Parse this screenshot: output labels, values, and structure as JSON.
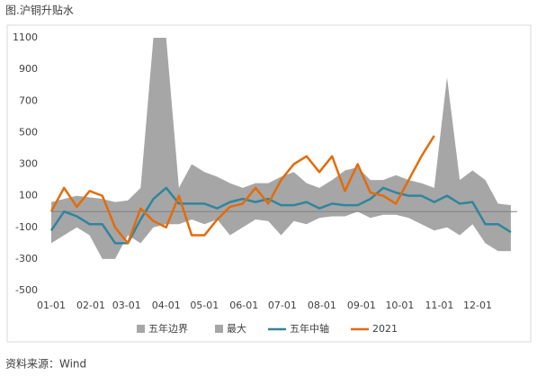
{
  "chart_data": {
    "type": "line",
    "title": "图.沪铜升贴水",
    "source": "资料来源：Wind",
    "x": [
      0,
      10,
      20,
      30,
      40,
      50,
      60,
      70,
      80,
      90,
      100,
      110,
      120,
      130,
      140,
      150,
      160,
      170,
      180,
      190,
      200,
      210,
      220,
      230,
      240,
      250,
      260,
      270,
      280,
      290,
      300,
      310,
      320,
      330,
      340,
      350,
      360
    ],
    "xlim": [
      0,
      365
    ],
    "xticks": [
      {
        "value": 0,
        "label": "01-01"
      },
      {
        "value": 31,
        "label": "02-01"
      },
      {
        "value": 59,
        "label": "03-01"
      },
      {
        "value": 90,
        "label": "04-01"
      },
      {
        "value": 120,
        "label": "05-01"
      },
      {
        "value": 151,
        "label": "06-01"
      },
      {
        "value": 181,
        "label": "07-01"
      },
      {
        "value": 212,
        "label": "08-01"
      },
      {
        "value": 243,
        "label": "09-01"
      },
      {
        "value": 273,
        "label": "10-01"
      },
      {
        "value": 304,
        "label": "11-01"
      },
      {
        "value": 334,
        "label": "12-01"
      }
    ],
    "ylim": [
      -500,
      1100
    ],
    "yticks": [
      -500,
      -300,
      -100,
      100,
      300,
      500,
      700,
      900,
      1100
    ],
    "series": [
      {
        "name": "五年边界",
        "kind": "area",
        "color": "#a6a6a6",
        "values": [
          -200,
          -150,
          -100,
          -150,
          -300,
          -300,
          -150,
          -200,
          -100,
          -80,
          -80,
          -50,
          -80,
          -50,
          -150,
          -100,
          -50,
          -60,
          -150,
          -60,
          -80,
          -40,
          -30,
          -30,
          0,
          -40,
          -20,
          -20,
          -40,
          -80,
          -120,
          -100,
          -150,
          -80,
          -200,
          -250,
          -250
        ]
      },
      {
        "name": "最大",
        "kind": "area",
        "color": "#a6a6a6",
        "values": [
          60,
          80,
          100,
          90,
          80,
          60,
          70,
          150,
          1100,
          1100,
          150,
          300,
          250,
          220,
          180,
          150,
          180,
          180,
          220,
          250,
          180,
          150,
          200,
          260,
          280,
          200,
          200,
          230,
          200,
          180,
          150,
          850,
          200,
          260,
          200,
          50,
          40
        ]
      },
      {
        "name": "五年中轴",
        "kind": "line",
        "color": "#31859c",
        "values": [
          -120,
          0,
          -30,
          -80,
          -80,
          -200,
          -200,
          -50,
          80,
          150,
          50,
          50,
          50,
          20,
          60,
          80,
          60,
          80,
          40,
          40,
          60,
          20,
          50,
          40,
          40,
          80,
          150,
          120,
          100,
          100,
          60,
          100,
          50,
          60,
          -80,
          -80,
          -130
        ]
      },
      {
        "name": "2021",
        "kind": "line",
        "color": "#e36c09",
        "values": [
          0,
          150,
          30,
          130,
          100,
          -100,
          -200,
          20,
          -60,
          -100,
          100,
          -150,
          -150,
          -50,
          30,
          50,
          150,
          50,
          200,
          300,
          350,
          250,
          350,
          130,
          300,
          120,
          100,
          50,
          200,
          350,
          480,
          null,
          null,
          null,
          null,
          null,
          null
        ]
      }
    ]
  }
}
